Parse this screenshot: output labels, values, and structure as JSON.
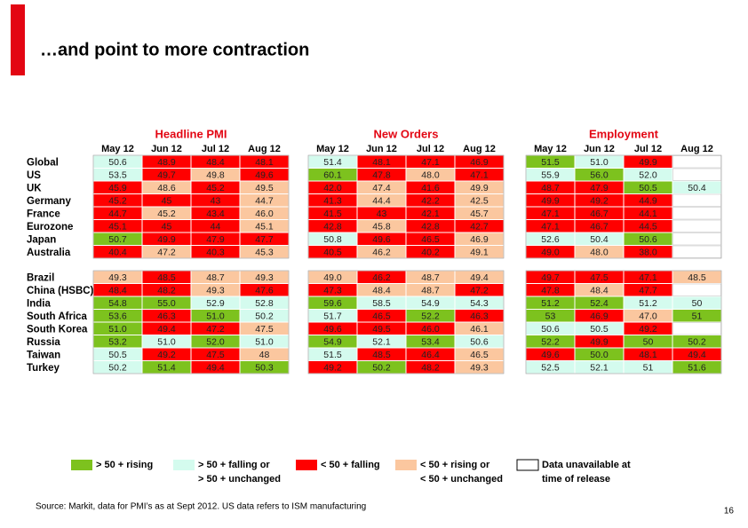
{
  "header": {
    "title": "…and point to more contraction"
  },
  "palette": {
    "g": "#7dc21e",
    "c": "#d4fbee",
    "r": "#ff0000",
    "p": "#fbc79f",
    "w": "#ffffff"
  },
  "table": {
    "row_blocks": [
      [
        "Global",
        "US",
        "UK",
        "Germany",
        "France",
        "Eurozone",
        "Japan",
        "Australia"
      ],
      [
        "Brazil",
        "China (HSBC)",
        "India",
        "South Africa",
        "South Korea",
        "Russia",
        "Taiwan",
        "Turkey"
      ]
    ],
    "groups": [
      {
        "title": "Headline PMI",
        "months": [
          "May 12",
          "Jun 12",
          "Jul 12",
          "Aug 12"
        ],
        "blocks": [
          [
            [
              [
                "50.6",
                "c"
              ],
              [
                "48.9",
                "r"
              ],
              [
                "48.4",
                "r"
              ],
              [
                "48.1",
                "r"
              ]
            ],
            [
              [
                "53.5",
                "c"
              ],
              [
                "49.7",
                "r"
              ],
              [
                "49.8",
                "p"
              ],
              [
                "49.6",
                "r"
              ]
            ],
            [
              [
                "45.9",
                "r"
              ],
              [
                "48.6",
                "p"
              ],
              [
                "45.2",
                "r"
              ],
              [
                "49.5",
                "p"
              ]
            ],
            [
              [
                "45.2",
                "r"
              ],
              [
                "45",
                "r"
              ],
              [
                "43",
                "r"
              ],
              [
                "44.7",
                "p"
              ]
            ],
            [
              [
                "44.7",
                "r"
              ],
              [
                "45.2",
                "p"
              ],
              [
                "43.4",
                "r"
              ],
              [
                "46.0",
                "p"
              ]
            ],
            [
              [
                "45.1",
                "r"
              ],
              [
                "45",
                "r"
              ],
              [
                "44",
                "r"
              ],
              [
                "45.1",
                "p"
              ]
            ],
            [
              [
                "50.7",
                "g"
              ],
              [
                "49.9",
                "r"
              ],
              [
                "47.9",
                "r"
              ],
              [
                "47.7",
                "r"
              ]
            ],
            [
              [
                "40.4",
                "r"
              ],
              [
                "47.2",
                "p"
              ],
              [
                "40.3",
                "r"
              ],
              [
                "45.3",
                "p"
              ]
            ]
          ],
          [
            [
              [
                "49.3",
                "p"
              ],
              [
                "48.5",
                "r"
              ],
              [
                "48.7",
                "p"
              ],
              [
                "49.3",
                "p"
              ]
            ],
            [
              [
                "48.4",
                "r"
              ],
              [
                "48.2",
                "r"
              ],
              [
                "49.3",
                "p"
              ],
              [
                "47.6",
                "r"
              ]
            ],
            [
              [
                "54.8",
                "g"
              ],
              [
                "55.0",
                "g"
              ],
              [
                "52.9",
                "c"
              ],
              [
                "52.8",
                "c"
              ]
            ],
            [
              [
                "53.6",
                "g"
              ],
              [
                "46.3",
                "r"
              ],
              [
                "51.0",
                "g"
              ],
              [
                "50.2",
                "c"
              ]
            ],
            [
              [
                "51.0",
                "g"
              ],
              [
                "49.4",
                "r"
              ],
              [
                "47.2",
                "r"
              ],
              [
                "47.5",
                "p"
              ]
            ],
            [
              [
                "53.2",
                "g"
              ],
              [
                "51.0",
                "c"
              ],
              [
                "52.0",
                "g"
              ],
              [
                "51.0",
                "c"
              ]
            ],
            [
              [
                "50.5",
                "c"
              ],
              [
                "49.2",
                "r"
              ],
              [
                "47.5",
                "r"
              ],
              [
                "48",
                "p"
              ]
            ],
            [
              [
                "50.2",
                "c"
              ],
              [
                "51.4",
                "g"
              ],
              [
                "49.4",
                "r"
              ],
              [
                "50.3",
                "g"
              ]
            ]
          ]
        ]
      },
      {
        "title": "New Orders",
        "months": [
          "May 12",
          "Jun 12",
          "Jul 12",
          "Aug 12"
        ],
        "blocks": [
          [
            [
              [
                "51.4",
                "c"
              ],
              [
                "48.1",
                "r"
              ],
              [
                "47.1",
                "r"
              ],
              [
                "46.9",
                "r"
              ]
            ],
            [
              [
                "60.1",
                "g"
              ],
              [
                "47.8",
                "r"
              ],
              [
                "48.0",
                "p"
              ],
              [
                "47.1",
                "r"
              ]
            ],
            [
              [
                "42.0",
                "r"
              ],
              [
                "47.4",
                "p"
              ],
              [
                "41.6",
                "r"
              ],
              [
                "49.9",
                "p"
              ]
            ],
            [
              [
                "41.3",
                "r"
              ],
              [
                "44.4",
                "p"
              ],
              [
                "42.2",
                "r"
              ],
              [
                "42.5",
                "p"
              ]
            ],
            [
              [
                "41.5",
                "r"
              ],
              [
                "43",
                "r"
              ],
              [
                "42.1",
                "r"
              ],
              [
                "45.7",
                "p"
              ]
            ],
            [
              [
                "42.8",
                "r"
              ],
              [
                "45.8",
                "p"
              ],
              [
                "42.8",
                "r"
              ],
              [
                "42.7",
                "r"
              ]
            ],
            [
              [
                "50.8",
                "c"
              ],
              [
                "49.6",
                "r"
              ],
              [
                "46.5",
                "r"
              ],
              [
                "46.9",
                "p"
              ]
            ],
            [
              [
                "40.5",
                "r"
              ],
              [
                "46.2",
                "p"
              ],
              [
                "40.2",
                "r"
              ],
              [
                "49.1",
                "p"
              ]
            ]
          ],
          [
            [
              [
                "49.0",
                "p"
              ],
              [
                "46.2",
                "r"
              ],
              [
                "48.7",
                "p"
              ],
              [
                "49.4",
                "p"
              ]
            ],
            [
              [
                "47.3",
                "r"
              ],
              [
                "48.4",
                "p"
              ],
              [
                "48.7",
                "p"
              ],
              [
                "47.2",
                "r"
              ]
            ],
            [
              [
                "59.6",
                "g"
              ],
              [
                "58.5",
                "c"
              ],
              [
                "54.9",
                "c"
              ],
              [
                "54.3",
                "c"
              ]
            ],
            [
              [
                "51.7",
                "c"
              ],
              [
                "46.5",
                "r"
              ],
              [
                "52.2",
                "g"
              ],
              [
                "46.3",
                "r"
              ]
            ],
            [
              [
                "49.6",
                "r"
              ],
              [
                "49.5",
                "r"
              ],
              [
                "46.0",
                "r"
              ],
              [
                "46.1",
                "p"
              ]
            ],
            [
              [
                "54.9",
                "g"
              ],
              [
                "52.1",
                "c"
              ],
              [
                "53.4",
                "g"
              ],
              [
                "50.6",
                "c"
              ]
            ],
            [
              [
                "51.5",
                "c"
              ],
              [
                "48.5",
                "r"
              ],
              [
                "46.4",
                "r"
              ],
              [
                "46.5",
                "p"
              ]
            ],
            [
              [
                "49.2",
                "r"
              ],
              [
                "50.2",
                "g"
              ],
              [
                "48.2",
                "r"
              ],
              [
                "49.3",
                "p"
              ]
            ]
          ]
        ]
      },
      {
        "title": "Employment",
        "months": [
          "May 12",
          "Jun 12",
          "Jul 12",
          "Aug 12"
        ],
        "blocks": [
          [
            [
              [
                "51.5",
                "g"
              ],
              [
                "51.0",
                "c"
              ],
              [
                "49.9",
                "r"
              ],
              [
                null,
                "w"
              ]
            ],
            [
              [
                "55.9",
                "c"
              ],
              [
                "56.0",
                "g"
              ],
              [
                "52.0",
                "c"
              ],
              [
                null,
                "w"
              ]
            ],
            [
              [
                "48.7",
                "r"
              ],
              [
                "47.9",
                "r"
              ],
              [
                "50.5",
                "g"
              ],
              [
                "50.4",
                "c"
              ]
            ],
            [
              [
                "49.9",
                "r"
              ],
              [
                "49.2",
                "r"
              ],
              [
                "44.9",
                "r"
              ],
              [
                null,
                "w"
              ]
            ],
            [
              [
                "47.1",
                "r"
              ],
              [
                "46.7",
                "r"
              ],
              [
                "44.1",
                "r"
              ],
              [
                null,
                "w"
              ]
            ],
            [
              [
                "47.1",
                "r"
              ],
              [
                "46.7",
                "r"
              ],
              [
                "44.5",
                "r"
              ],
              [
                null,
                "w"
              ]
            ],
            [
              [
                "52.6",
                "c"
              ],
              [
                "50.4",
                "c"
              ],
              [
                "50.6",
                "g"
              ],
              [
                null,
                "w"
              ]
            ],
            [
              [
                "49.0",
                "r"
              ],
              [
                "48.0",
                "p"
              ],
              [
                "38.0",
                "r"
              ],
              [
                null,
                "w"
              ]
            ]
          ],
          [
            [
              [
                "49.7",
                "r"
              ],
              [
                "47.5",
                "r"
              ],
              [
                "47.1",
                "r"
              ],
              [
                "48.5",
                "p"
              ]
            ],
            [
              [
                "47.8",
                "r"
              ],
              [
                "48.4",
                "p"
              ],
              [
                "47.7",
                "r"
              ],
              [
                null,
                "w"
              ]
            ],
            [
              [
                "51.2",
                "g"
              ],
              [
                "52.4",
                "g"
              ],
              [
                "51.2",
                "c"
              ],
              [
                "50",
                "c"
              ]
            ],
            [
              [
                "53",
                "g"
              ],
              [
                "46.9",
                "r"
              ],
              [
                "47.0",
                "p"
              ],
              [
                "51",
                "g"
              ]
            ],
            [
              [
                "50.6",
                "c"
              ],
              [
                "50.5",
                "c"
              ],
              [
                "49.2",
                "r"
              ],
              [
                null,
                "w"
              ]
            ],
            [
              [
                "52.2",
                "g"
              ],
              [
                "49.9",
                "r"
              ],
              [
                "50",
                "g"
              ],
              [
                "50.2",
                "g"
              ]
            ],
            [
              [
                "49.6",
                "r"
              ],
              [
                "50.0",
                "g"
              ],
              [
                "48.1",
                "r"
              ],
              [
                "49.4",
                "r"
              ]
            ],
            [
              [
                "52.5",
                "c"
              ],
              [
                "52.1",
                "c"
              ],
              [
                "51",
                "c"
              ],
              [
                "51.6",
                "g"
              ]
            ]
          ]
        ]
      }
    ]
  },
  "legend": [
    {
      "key": "g",
      "lines": [
        "> 50 + rising"
      ]
    },
    {
      "key": "c",
      "lines": [
        "> 50 + falling or",
        "> 50 + unchanged"
      ]
    },
    {
      "key": "r",
      "lines": [
        "< 50 + falling"
      ]
    },
    {
      "key": "p",
      "lines": [
        "< 50 + rising or",
        "< 50 + unchanged"
      ]
    },
    {
      "key": "w",
      "lines": [
        "Data unavailable at",
        "time of release"
      ]
    }
  ],
  "footer": {
    "source": "Source: Markit, data for PMI’s as at Sept 2012. US data refers to ISM manufacturing",
    "page": "16"
  }
}
